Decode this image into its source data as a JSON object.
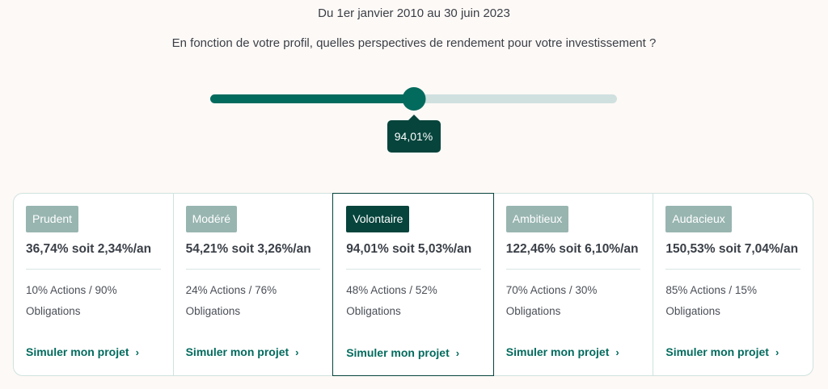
{
  "header": {
    "period": "Du 1er janvier 2010 au 30 juin 2023",
    "question": "En fonction de votre profil, quelles perspectives de rendement pour votre investissement ?"
  },
  "slider": {
    "value_label": "94,01%",
    "position_fraction": 0.5,
    "colors": {
      "fill": "#036b5e",
      "track": "#cfe0df",
      "tooltip": "#06443c"
    }
  },
  "profiles": [
    {
      "name": "Prudent",
      "yield": "36,74% soit 2,34%/an",
      "alloc_line1": "10% Actions / 90%",
      "alloc_line2": "Obligations",
      "cta": "Simuler mon projet",
      "active": false
    },
    {
      "name": "Modéré",
      "yield": "54,21% soit 3,26%/an",
      "alloc_line1": "24% Actions / 76%",
      "alloc_line2": "Obligations",
      "cta": "Simuler mon projet",
      "active": false
    },
    {
      "name": "Volontaire",
      "yield": "94,01% soit 5,03%/an",
      "alloc_line1": "48% Actions / 52%",
      "alloc_line2": "Obligations",
      "cta": "Simuler mon projet",
      "active": true
    },
    {
      "name": "Ambitieux",
      "yield": "122,46% soit 6,10%/an",
      "alloc_line1": "70% Actions / 30%",
      "alloc_line2": "Obligations",
      "cta": "Simuler mon projet",
      "active": false
    },
    {
      "name": "Audacieux",
      "yield": "150,53% soit 7,04%/an",
      "alloc_line1": "85% Actions / 15%",
      "alloc_line2": "Obligations",
      "cta": "Simuler mon projet",
      "active": false
    }
  ],
  "icons": {
    "cta_arrow": "chevron-right-icon"
  },
  "theme": {
    "accent": "#036b5e",
    "dark": "#06443c",
    "badge": "#98b5b0",
    "background": "#fdf9f6"
  }
}
